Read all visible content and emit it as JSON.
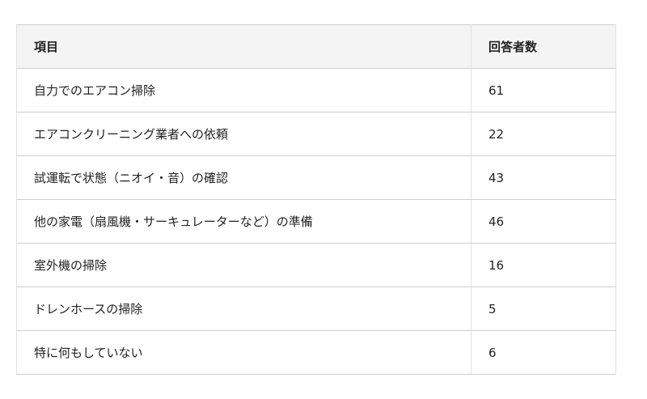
{
  "table": {
    "headers": [
      "項目",
      "回答者数"
    ],
    "rows": [
      {
        "item": "自力でのエアコン掃除",
        "count": "61"
      },
      {
        "item": "エアコンクリーニング業者への依頼",
        "count": "22"
      },
      {
        "item": "試運転で状態（ニオイ・音）の確認",
        "count": "43"
      },
      {
        "item": "他の家電（扇風機・サーキュレーターなど）の準備",
        "count": "46"
      },
      {
        "item": "室外機の掃除",
        "count": "16"
      },
      {
        "item": "ドレンホースの掃除",
        "count": "5"
      },
      {
        "item": "特に何もしていない",
        "count": "6"
      }
    ]
  }
}
